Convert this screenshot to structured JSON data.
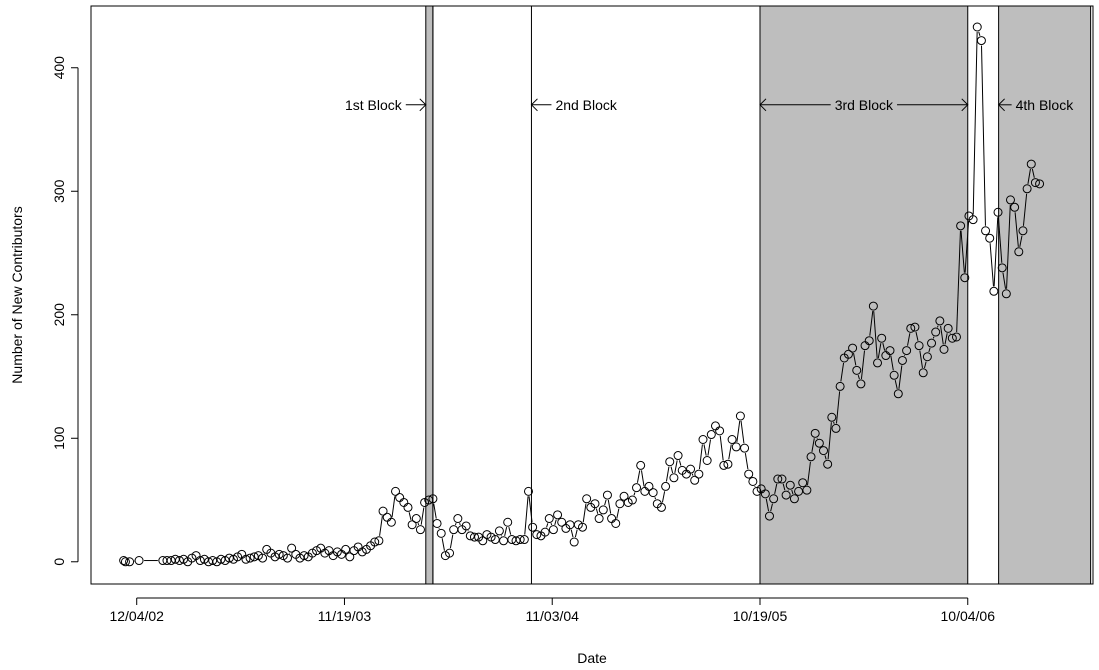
{
  "chart_data": {
    "type": "scatter",
    "title": "",
    "xlabel": "Date",
    "ylabel": "Number of New Contributors",
    "x_ticks": [
      "12/04/02",
      "11/19/03",
      "11/03/04",
      "10/19/05",
      "10/04/06"
    ],
    "y_ticks": [
      0,
      100,
      200,
      300,
      400
    ],
    "ylim": [
      -18,
      450
    ],
    "grid": false,
    "legend": "none",
    "connect_points": true,
    "blocks": [
      {
        "label": "1st Block",
        "start": "2004-04-04",
        "end": "2004-04-16",
        "shaded": true
      },
      {
        "label": "2nd Block",
        "start": "2004-04-16",
        "end": "2004-09-29",
        "shaded": false
      },
      {
        "label": "3rd Block",
        "start": "2005-10-19",
        "end": "2006-10-04",
        "shaded": true
      },
      {
        "label": "4th Block",
        "start": "2006-11-25",
        "end": "2007-04-29",
        "shaded": true
      }
    ],
    "series": [
      {
        "values": [
          [
            "2002-11-12",
            1
          ],
          [
            "2002-11-15",
            0
          ],
          [
            "2002-11-22",
            0
          ],
          [
            "2002-12-08",
            1
          ],
          [
            "2003-01-17",
            1
          ],
          [
            "2003-01-24",
            1
          ],
          [
            "2003-01-31",
            1
          ],
          [
            "2003-02-07",
            2
          ],
          [
            "2003-02-14",
            1
          ],
          [
            "2003-02-21",
            2
          ],
          [
            "2003-02-28",
            0
          ],
          [
            "2003-03-07",
            3
          ],
          [
            "2003-03-14",
            5
          ],
          [
            "2003-03-21",
            1
          ],
          [
            "2003-03-28",
            2
          ],
          [
            "2003-04-04",
            0
          ],
          [
            "2003-04-11",
            1
          ],
          [
            "2003-04-18",
            0
          ],
          [
            "2003-04-25",
            2
          ],
          [
            "2003-05-02",
            1
          ],
          [
            "2003-05-09",
            3
          ],
          [
            "2003-05-16",
            2
          ],
          [
            "2003-05-23",
            4
          ],
          [
            "2003-05-30",
            6
          ],
          [
            "2003-06-06",
            2
          ],
          [
            "2003-06-13",
            3
          ],
          [
            "2003-06-20",
            4
          ],
          [
            "2003-06-27",
            5
          ],
          [
            "2003-07-04",
            3
          ],
          [
            "2003-07-11",
            10
          ],
          [
            "2003-07-18",
            7
          ],
          [
            "2003-07-25",
            4
          ],
          [
            "2003-08-01",
            6
          ],
          [
            "2003-08-08",
            5
          ],
          [
            "2003-08-15",
            3
          ],
          [
            "2003-08-22",
            11
          ],
          [
            "2003-08-29",
            6
          ],
          [
            "2003-09-05",
            3
          ],
          [
            "2003-09-12",
            5
          ],
          [
            "2003-09-19",
            4
          ],
          [
            "2003-09-26",
            7
          ],
          [
            "2003-10-03",
            9
          ],
          [
            "2003-10-10",
            11
          ],
          [
            "2003-10-17",
            7
          ],
          [
            "2003-10-24",
            9
          ],
          [
            "2003-10-31",
            5
          ],
          [
            "2003-11-07",
            8
          ],
          [
            "2003-11-14",
            6
          ],
          [
            "2003-11-21",
            10
          ],
          [
            "2003-11-28",
            4
          ],
          [
            "2003-12-05",
            9
          ],
          [
            "2003-12-12",
            12
          ],
          [
            "2003-12-19",
            8
          ],
          [
            "2003-12-26",
            10
          ],
          [
            "2004-01-02",
            13
          ],
          [
            "2004-01-09",
            16
          ],
          [
            "2004-01-16",
            17
          ],
          [
            "2004-01-23",
            41
          ],
          [
            "2004-01-30",
            36
          ],
          [
            "2004-02-06",
            32
          ],
          [
            "2004-02-13",
            57
          ],
          [
            "2004-02-20",
            52
          ],
          [
            "2004-02-27",
            48
          ],
          [
            "2004-03-05",
            44
          ],
          [
            "2004-03-12",
            30
          ],
          [
            "2004-03-19",
            35
          ],
          [
            "2004-03-26",
            26
          ],
          [
            "2004-04-02",
            48
          ],
          [
            "2004-04-09",
            50
          ],
          [
            "2004-04-16",
            51
          ],
          [
            "2004-04-23",
            31
          ],
          [
            "2004-04-30",
            23
          ],
          [
            "2004-05-07",
            5
          ],
          [
            "2004-05-14",
            7
          ],
          [
            "2004-05-21",
            26
          ],
          [
            "2004-05-28",
            35
          ],
          [
            "2004-06-04",
            26
          ],
          [
            "2004-06-11",
            29
          ],
          [
            "2004-06-18",
            21
          ],
          [
            "2004-06-25",
            20
          ],
          [
            "2004-07-02",
            20
          ],
          [
            "2004-07-09",
            17
          ],
          [
            "2004-07-16",
            22
          ],
          [
            "2004-07-23",
            20
          ],
          [
            "2004-07-30",
            18
          ],
          [
            "2004-08-06",
            25
          ],
          [
            "2004-08-13",
            17
          ],
          [
            "2004-08-20",
            32
          ],
          [
            "2004-08-27",
            18
          ],
          [
            "2004-09-03",
            17
          ],
          [
            "2004-09-10",
            18
          ],
          [
            "2004-09-17",
            18
          ],
          [
            "2004-09-24",
            57
          ],
          [
            "2004-10-01",
            28
          ],
          [
            "2004-10-08",
            22
          ],
          [
            "2004-10-15",
            21
          ],
          [
            "2004-10-22",
            24
          ],
          [
            "2004-10-29",
            35
          ],
          [
            "2004-11-05",
            26
          ],
          [
            "2004-11-12",
            38
          ],
          [
            "2004-11-19",
            32
          ],
          [
            "2004-11-26",
            27
          ],
          [
            "2004-12-03",
            30
          ],
          [
            "2004-12-10",
            16
          ],
          [
            "2004-12-17",
            30
          ],
          [
            "2004-12-24",
            28
          ],
          [
            "2004-12-31",
            51
          ],
          [
            "2005-01-07",
            44
          ],
          [
            "2005-01-14",
            47
          ],
          [
            "2005-01-21",
            35
          ],
          [
            "2005-01-28",
            42
          ],
          [
            "2005-02-04",
            54
          ],
          [
            "2005-02-11",
            35
          ],
          [
            "2005-02-18",
            31
          ],
          [
            "2005-02-25",
            47
          ],
          [
            "2005-03-04",
            53
          ],
          [
            "2005-03-11",
            48
          ],
          [
            "2005-03-18",
            50
          ],
          [
            "2005-03-25",
            60
          ],
          [
            "2005-04-01",
            78
          ],
          [
            "2005-04-08",
            57
          ],
          [
            "2005-04-15",
            61
          ],
          [
            "2005-04-22",
            56
          ],
          [
            "2005-04-29",
            47
          ],
          [
            "2005-05-06",
            44
          ],
          [
            "2005-05-13",
            61
          ],
          [
            "2005-05-20",
            81
          ],
          [
            "2005-05-27",
            68
          ],
          [
            "2005-06-03",
            86
          ],
          [
            "2005-06-10",
            74
          ],
          [
            "2005-06-17",
            71
          ],
          [
            "2005-06-24",
            75
          ],
          [
            "2005-07-01",
            66
          ],
          [
            "2005-07-08",
            71
          ],
          [
            "2005-07-15",
            99
          ],
          [
            "2005-07-22",
            82
          ],
          [
            "2005-07-29",
            103
          ],
          [
            "2005-08-05",
            110
          ],
          [
            "2005-08-12",
            106
          ],
          [
            "2005-08-19",
            78
          ],
          [
            "2005-08-26",
            79
          ],
          [
            "2005-09-02",
            99
          ],
          [
            "2005-09-09",
            93
          ],
          [
            "2005-09-16",
            118
          ],
          [
            "2005-09-23",
            92
          ],
          [
            "2005-09-30",
            71
          ],
          [
            "2005-10-07",
            65
          ],
          [
            "2005-10-14",
            57
          ],
          [
            "2005-10-21",
            59
          ],
          [
            "2005-10-28",
            55
          ],
          [
            "2005-11-04",
            37
          ],
          [
            "2005-11-11",
            51
          ],
          [
            "2005-11-18",
            67
          ],
          [
            "2005-11-25",
            67
          ],
          [
            "2005-12-02",
            54
          ],
          [
            "2005-12-09",
            62
          ],
          [
            "2005-12-16",
            51
          ],
          [
            "2005-12-23",
            57
          ],
          [
            "2005-12-30",
            64
          ],
          [
            "2006-01-06",
            58
          ],
          [
            "2006-01-13",
            85
          ],
          [
            "2006-01-20",
            104
          ],
          [
            "2006-01-27",
            96
          ],
          [
            "2006-02-03",
            90
          ],
          [
            "2006-02-10",
            79
          ],
          [
            "2006-02-17",
            117
          ],
          [
            "2006-02-24",
            108
          ],
          [
            "2006-03-03",
            142
          ],
          [
            "2006-03-10",
            165
          ],
          [
            "2006-03-17",
            168
          ],
          [
            "2006-03-24",
            173
          ],
          [
            "2006-03-31",
            155
          ],
          [
            "2006-04-07",
            144
          ],
          [
            "2006-04-14",
            175
          ],
          [
            "2006-04-21",
            179
          ],
          [
            "2006-04-28",
            207
          ],
          [
            "2006-05-05",
            161
          ],
          [
            "2006-05-12",
            181
          ],
          [
            "2006-05-19",
            167
          ],
          [
            "2006-05-26",
            171
          ],
          [
            "2006-06-02",
            151
          ],
          [
            "2006-06-09",
            136
          ],
          [
            "2006-06-16",
            163
          ],
          [
            "2006-06-23",
            171
          ],
          [
            "2006-06-30",
            189
          ],
          [
            "2006-07-07",
            190
          ],
          [
            "2006-07-14",
            175
          ],
          [
            "2006-07-21",
            153
          ],
          [
            "2006-07-28",
            166
          ],
          [
            "2006-08-04",
            177
          ],
          [
            "2006-08-11",
            186
          ],
          [
            "2006-08-18",
            195
          ],
          [
            "2006-08-25",
            172
          ],
          [
            "2006-09-01",
            189
          ],
          [
            "2006-09-08",
            181
          ],
          [
            "2006-09-15",
            182
          ],
          [
            "2006-09-22",
            272
          ],
          [
            "2006-09-29",
            230
          ],
          [
            "2006-10-06",
            280
          ],
          [
            "2006-10-13",
            277
          ],
          [
            "2006-10-20",
            433
          ],
          [
            "2006-10-27",
            422
          ],
          [
            "2006-11-03",
            268
          ],
          [
            "2006-11-10",
            262
          ],
          [
            "2006-11-17",
            219
          ],
          [
            "2006-11-24",
            283
          ],
          [
            "2006-12-01",
            238
          ],
          [
            "2006-12-08",
            217
          ],
          [
            "2006-12-15",
            293
          ],
          [
            "2006-12-22",
            287
          ],
          [
            "2006-12-29",
            251
          ],
          [
            "2007-01-05",
            268
          ],
          [
            "2007-01-12",
            302
          ],
          [
            "2007-01-19",
            322
          ],
          [
            "2007-01-26",
            307
          ],
          [
            "2007-02-02",
            306
          ]
        ]
      }
    ]
  }
}
